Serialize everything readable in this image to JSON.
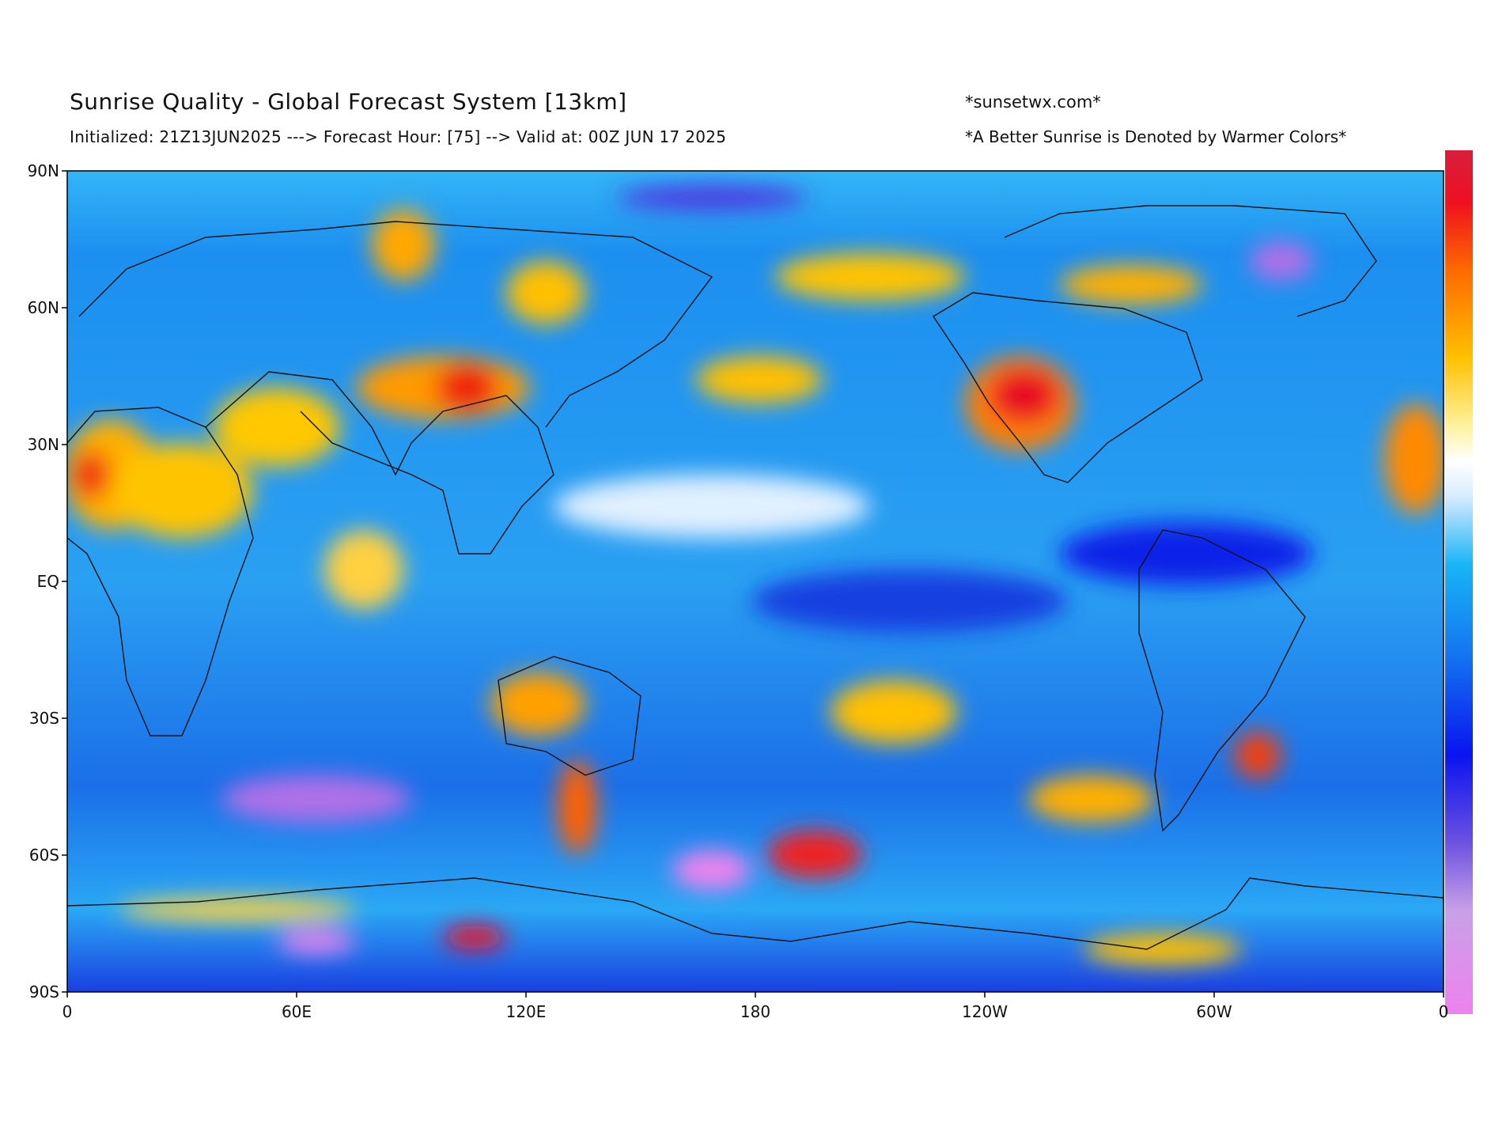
{
  "map": {
    "title": "Sunrise Quality - Global Forecast System [13km]",
    "subtitle": "Initialized: 21Z13JUN2025 ---> Forecast Hour: [75] --> Valid at: 00Z JUN 17 2025",
    "credit": "*sunsetwx.com*",
    "note": "*A Better Sunrise is Denoted by Warmer Colors*",
    "lat_ticks": [
      "90N",
      "60N",
      "30N",
      "EQ",
      "30S",
      "60S",
      "90S"
    ],
    "lon_ticks": [
      "0",
      "60E",
      "120E",
      "180",
      "120W",
      "60W",
      "0"
    ]
  }
}
